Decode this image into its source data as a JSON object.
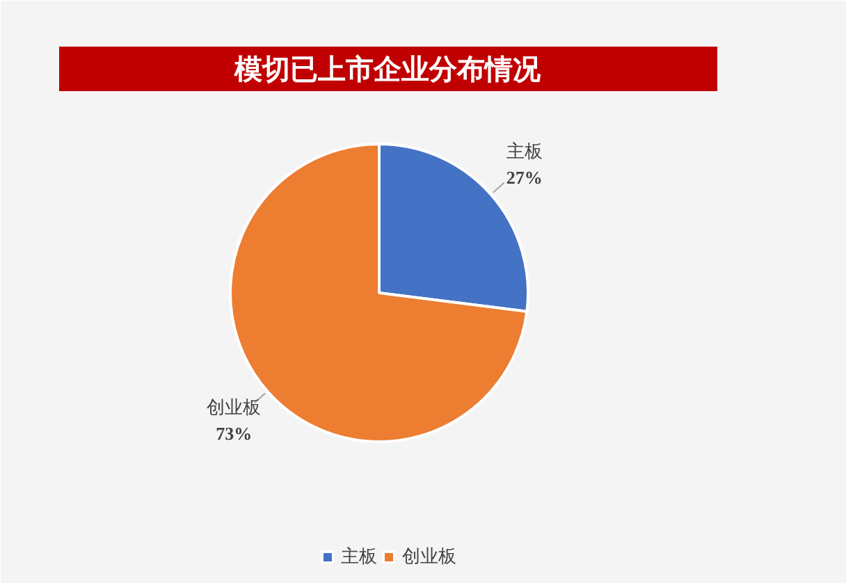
{
  "chart_data": {
    "type": "pie",
    "title": "模切已上市企业分布情况",
    "categories": [
      "主板",
      "创业板"
    ],
    "values": [
      27,
      73
    ],
    "colors": [
      "#4472c4",
      "#ed7d31"
    ],
    "value_labels": [
      "27%",
      "73%"
    ],
    "legend": "bottom"
  }
}
